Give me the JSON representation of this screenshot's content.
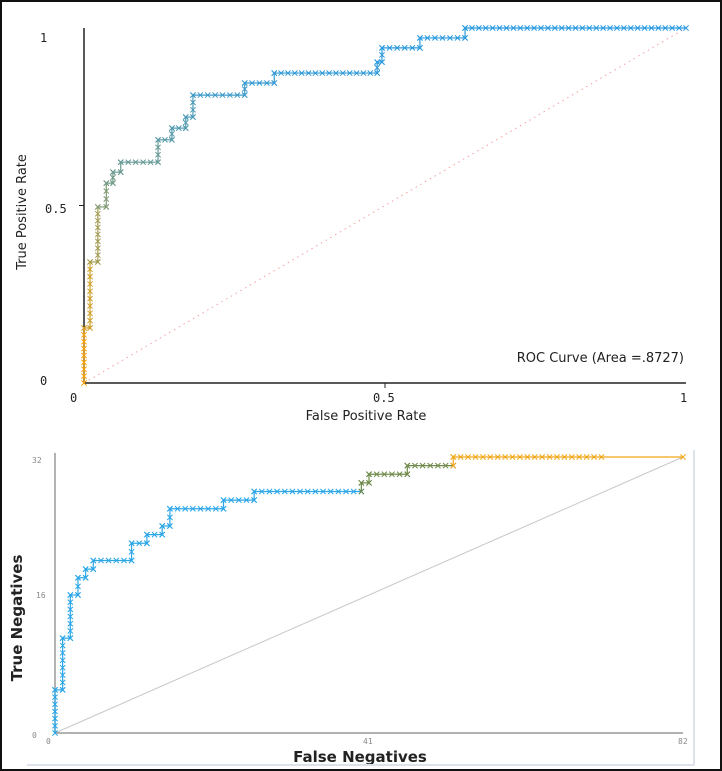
{
  "chart_data": [
    {
      "type": "line",
      "title": "",
      "xlabel": "False Positive Rate",
      "ylabel": "True Positive Rate",
      "xlim": [
        0,
        1
      ],
      "ylim": [
        0,
        1
      ],
      "xticks": [
        "0",
        "0.5",
        "1"
      ],
      "yticks": [
        "0",
        "0.5",
        "1"
      ],
      "annotation": "ROC Curve (Area =.8727)",
      "area": 0.8727,
      "series": [
        {
          "name": "ROC",
          "style": "step",
          "points": [
            [
              0,
              0
            ],
            [
              0,
              0.155
            ],
            [
              0.01,
              0.155
            ],
            [
              0.01,
              0.341
            ],
            [
              0.023,
              0.341
            ],
            [
              0.023,
              0.496
            ],
            [
              0.037,
              0.496
            ],
            [
              0.037,
              0.563
            ],
            [
              0.048,
              0.563
            ],
            [
              0.048,
              0.594
            ],
            [
              0.061,
              0.594
            ],
            [
              0.061,
              0.622
            ],
            [
              0.123,
              0.622
            ],
            [
              0.123,
              0.685
            ],
            [
              0.146,
              0.685
            ],
            [
              0.146,
              0.718
            ],
            [
              0.169,
              0.718
            ],
            [
              0.169,
              0.749
            ],
            [
              0.181,
              0.749
            ],
            [
              0.181,
              0.811
            ],
            [
              0.267,
              0.811
            ],
            [
              0.267,
              0.845
            ],
            [
              0.316,
              0.845
            ],
            [
              0.316,
              0.873
            ],
            [
              0.487,
              0.873
            ],
            [
              0.487,
              0.904
            ],
            [
              0.495,
              0.904
            ],
            [
              0.495,
              0.944
            ],
            [
              0.558,
              0.944
            ],
            [
              0.558,
              0.972
            ],
            [
              0.633,
              0.972
            ],
            [
              0.633,
              1.0
            ],
            [
              1.0,
              1.0
            ]
          ]
        },
        {
          "name": "Chance",
          "style": "dotted",
          "points": [
            [
              0,
              0
            ],
            [
              1,
              1
            ]
          ]
        }
      ],
      "colors": {
        "start": "#f5a20a",
        "mid": "#8a9a6a",
        "end": "#2a9ae0",
        "chance": "#f4a0a0",
        "axis": "#222222"
      }
    },
    {
      "type": "line",
      "title": "",
      "xlabel": "False Negatives",
      "ylabel": "True Negatives",
      "xlim": [
        0,
        82
      ],
      "ylim": [
        0,
        32
      ],
      "xticks": [
        "0",
        "41",
        "82"
      ],
      "yticks": [
        "0",
        "16",
        "32"
      ],
      "series": [
        {
          "name": "Curve",
          "style": "step",
          "points": [
            [
              0,
              0
            ],
            [
              0,
              5
            ],
            [
              1,
              5
            ],
            [
              1,
              11
            ],
            [
              2,
              11
            ],
            [
              2,
              16
            ],
            [
              3,
              16
            ],
            [
              3,
              18
            ],
            [
              4,
              18
            ],
            [
              4,
              19
            ],
            [
              5,
              19
            ],
            [
              5,
              20
            ],
            [
              10,
              20
            ],
            [
              10,
              22
            ],
            [
              12,
              22
            ],
            [
              12,
              23
            ],
            [
              14,
              23
            ],
            [
              14,
              24
            ],
            [
              15,
              24
            ],
            [
              15,
              26
            ],
            [
              22,
              26
            ],
            [
              22,
              27
            ],
            [
              26,
              27
            ],
            [
              26,
              28
            ],
            [
              40,
              28
            ],
            [
              40,
              29
            ],
            [
              41,
              29
            ],
            [
              41,
              30
            ],
            [
              46,
              30
            ],
            [
              46,
              31
            ],
            [
              52,
              31
            ],
            [
              52,
              32
            ],
            [
              82,
              32
            ]
          ],
          "marker_end": 72
        },
        {
          "name": "Diagonal",
          "style": "solid",
          "points": [
            [
              0,
              0
            ],
            [
              82,
              32
            ]
          ]
        }
      ],
      "colors": {
        "start": "#2aa6e8",
        "mid": "#6f8a4a",
        "end": "#f2a81a",
        "diagonal": "#c8c8c8",
        "axis": "#999999"
      }
    }
  ]
}
